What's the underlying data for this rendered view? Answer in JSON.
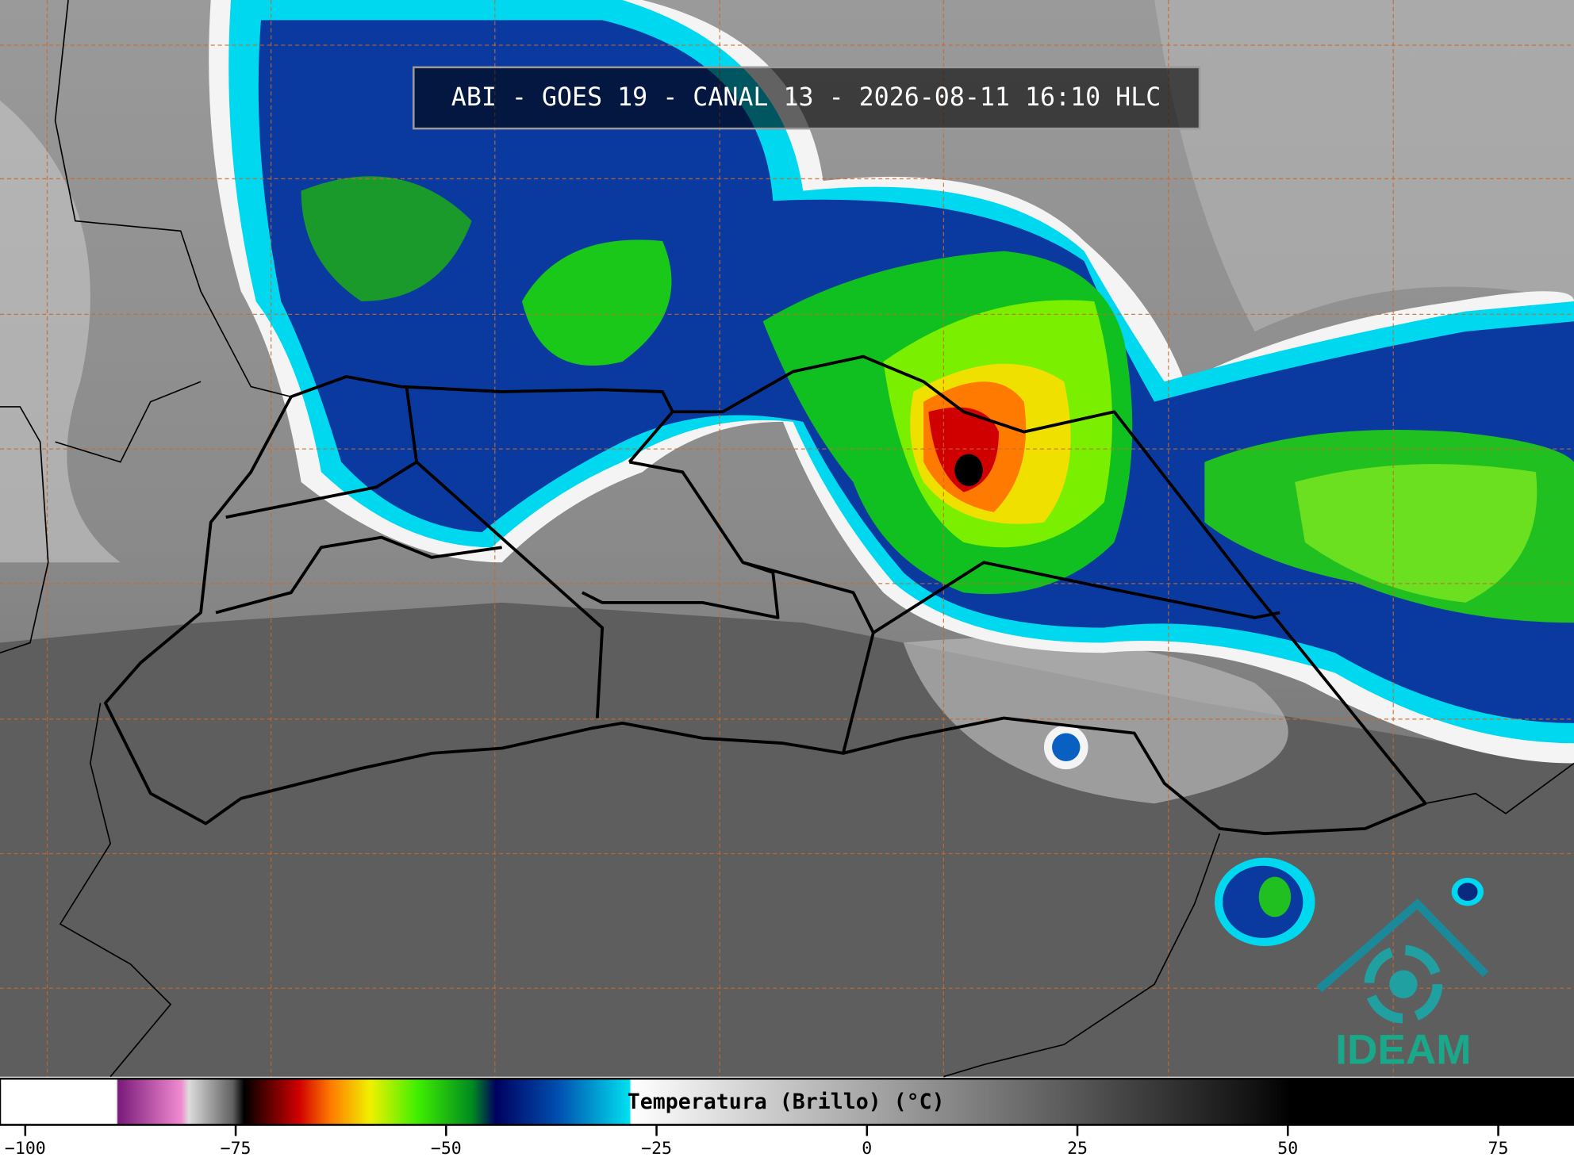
{
  "title": "ABI - GOES 19 - CANAL 13 - 2026-08-11 16:10 HLC",
  "colorbar": {
    "label": "Temperatura (Brillo) (°C)",
    "range": [
      -103,
      84
    ],
    "ticks": [
      {
        "value": -100,
        "label": "−100"
      },
      {
        "value": -75,
        "label": "−75"
      },
      {
        "value": -50,
        "label": "−50"
      },
      {
        "value": -25,
        "label": "−25"
      },
      0,
      25,
      50,
      75
    ]
  },
  "logo": "IDEAM"
}
